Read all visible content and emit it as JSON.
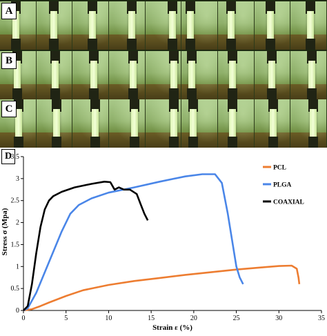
{
  "panels": {
    "photo_rows": [
      {
        "label": "A"
      },
      {
        "label": "B"
      },
      {
        "label": "C"
      }
    ],
    "chart_label": "D"
  },
  "chart_data": {
    "type": "line",
    "title": "",
    "xlabel": "Strain ε (%)",
    "ylabel": "Stress σ (Mpa)",
    "xlim": [
      0,
      35
    ],
    "ylim": [
      0,
      3.5
    ],
    "xticks": [
      0,
      5,
      10,
      15,
      20,
      25,
      30,
      35
    ],
    "yticks": [
      0,
      0.5,
      1,
      1.5,
      2,
      2.5,
      3,
      3.5
    ],
    "ytick_labels": [
      "0",
      "0.5",
      "1",
      "1.5",
      "2",
      "2.5",
      "3",
      "3.5"
    ],
    "grid": false,
    "legend_position": "top-right",
    "series": [
      {
        "name": "PCL",
        "color": "#ed7d31",
        "x": [
          0,
          1,
          2,
          3,
          5,
          7,
          10,
          13,
          16,
          19,
          22,
          25,
          28,
          30,
          31.5,
          32.1,
          32.3,
          32.4
        ],
        "y": [
          0,
          0.03,
          0.1,
          0.18,
          0.33,
          0.46,
          0.58,
          0.67,
          0.74,
          0.81,
          0.87,
          0.93,
          0.98,
          1.01,
          1.02,
          0.95,
          0.75,
          0.6
        ]
      },
      {
        "name": "PLGA",
        "color": "#4a86e8",
        "x": [
          0,
          0.5,
          1.5,
          3,
          4.5,
          5.5,
          6.5,
          8,
          10,
          13,
          16,
          19,
          21,
          22.5,
          23.3,
          24,
          24.5,
          25,
          25.4,
          25.8
        ],
        "y": [
          0,
          0.05,
          0.4,
          1.1,
          1.8,
          2.2,
          2.4,
          2.55,
          2.68,
          2.8,
          2.93,
          3.05,
          3.1,
          3.1,
          2.9,
          2.2,
          1.6,
          1.0,
          0.75,
          0.6
        ]
      },
      {
        "name": "COAXIAL",
        "color": "#000000",
        "x": [
          0,
          0.5,
          1,
          1.5,
          2,
          2.5,
          3,
          3.5,
          4.5,
          6,
          8,
          9.5,
          10.2,
          10.7,
          11.2,
          11.8,
          12.5,
          13.3,
          13.8,
          14.2,
          14.6
        ],
        "y": [
          0,
          0.1,
          0.6,
          1.3,
          1.9,
          2.3,
          2.5,
          2.6,
          2.7,
          2.8,
          2.88,
          2.93,
          2.92,
          2.75,
          2.8,
          2.75,
          2.75,
          2.65,
          2.4,
          2.2,
          2.05
        ]
      }
    ]
  }
}
